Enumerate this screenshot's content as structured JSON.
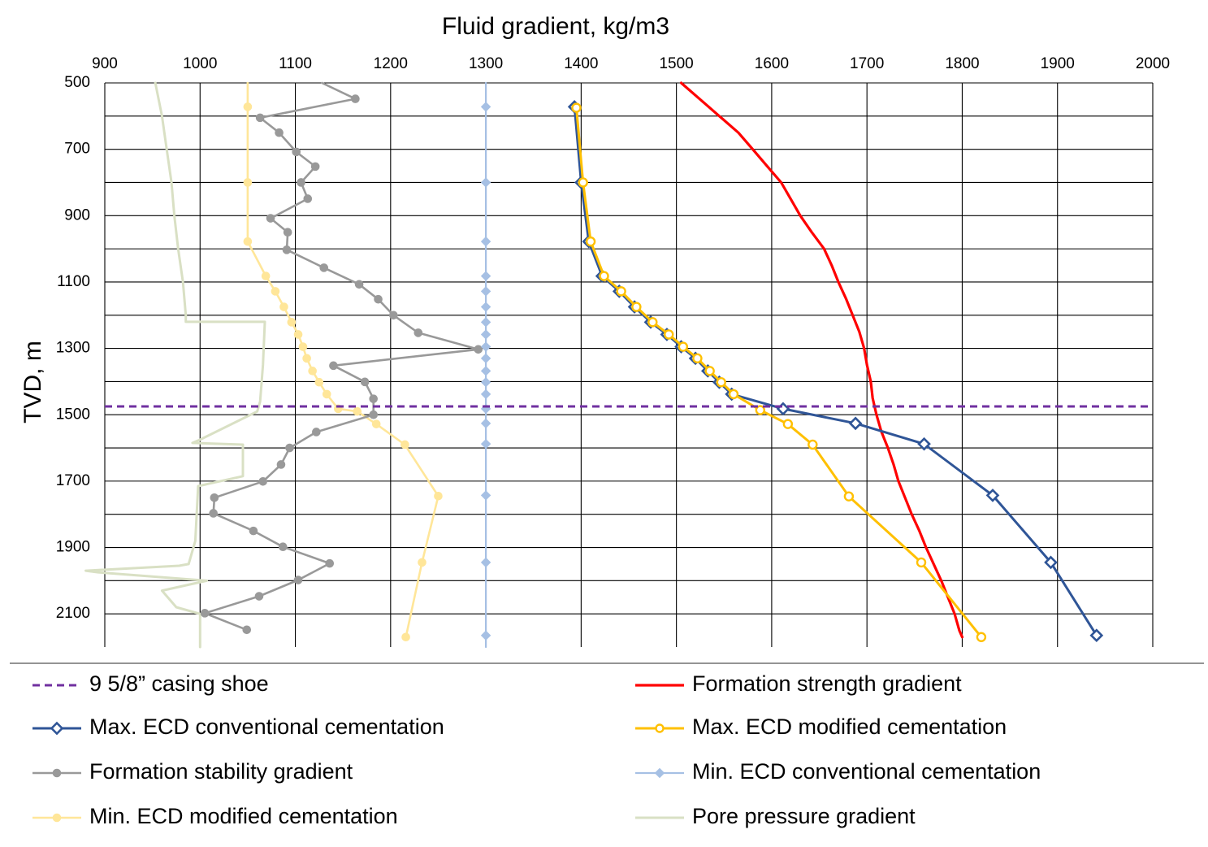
{
  "chart_data": {
    "type": "line",
    "xlabel": "Fluid gradient, kg/m3",
    "ylabel": "TVD, m",
    "x_axis_position": "top",
    "y_axis_inverted": true,
    "xlim": [
      900,
      2000
    ],
    "ylim": [
      500,
      2200
    ],
    "x_ticks": [
      "900",
      "1000",
      "1100",
      "1200",
      "1300",
      "1400",
      "1500",
      "1600",
      "1700",
      "1800",
      "1900",
      "2000"
    ],
    "y_ticks": [
      "500",
      "700",
      "900",
      "1100",
      "1300",
      "1500",
      "1700",
      "1900",
      "2100"
    ],
    "y_gridlines": [
      500,
      600,
      700,
      800,
      900,
      1000,
      1100,
      1200,
      1300,
      1400,
      1500,
      1600,
      1700,
      1800,
      1900,
      2000,
      2100
    ],
    "grid": true,
    "legend_position": "bottom",
    "series": [
      {
        "name": "9 5/8” casing shoe",
        "color": "#7030a0",
        "style": "dashed",
        "marker": "none",
        "points": [
          [
            900,
            1475
          ],
          [
            2000,
            1475
          ]
        ]
      },
      {
        "name": "Formation strength gradient",
        "color": "#ff0000",
        "style": "solid",
        "marker": "none",
        "points": [
          [
            1505,
            500
          ],
          [
            1525,
            550
          ],
          [
            1545,
            600
          ],
          [
            1565,
            650
          ],
          [
            1580,
            700
          ],
          [
            1595,
            750
          ],
          [
            1610,
            800
          ],
          [
            1620,
            850
          ],
          [
            1630,
            900
          ],
          [
            1642,
            950
          ],
          [
            1655,
            1000
          ],
          [
            1663,
            1050
          ],
          [
            1670,
            1100
          ],
          [
            1678,
            1150
          ],
          [
            1685,
            1200
          ],
          [
            1692,
            1250
          ],
          [
            1697,
            1300
          ],
          [
            1700,
            1350
          ],
          [
            1704,
            1400
          ],
          [
            1706,
            1450
          ],
          [
            1710,
            1500
          ],
          [
            1715,
            1550
          ],
          [
            1722,
            1600
          ],
          [
            1728,
            1650
          ],
          [
            1733,
            1700
          ],
          [
            1740,
            1750
          ],
          [
            1747,
            1800
          ],
          [
            1755,
            1850
          ],
          [
            1762,
            1900
          ],
          [
            1770,
            1950
          ],
          [
            1778,
            2000
          ],
          [
            1785,
            2050
          ],
          [
            1792,
            2100
          ],
          [
            1797,
            2150
          ],
          [
            1800,
            2170
          ]
        ]
      },
      {
        "name": "Max. ECD conventional cementation",
        "color": "#2f5597",
        "style": "solid",
        "marker": "open-diamond",
        "points": [
          [
            1393,
            572
          ],
          [
            1400,
            800
          ],
          [
            1408,
            978
          ],
          [
            1422,
            1082
          ],
          [
            1440,
            1128
          ],
          [
            1456,
            1175
          ],
          [
            1473,
            1221
          ],
          [
            1490,
            1258
          ],
          [
            1505,
            1295
          ],
          [
            1520,
            1330
          ],
          [
            1533,
            1368
          ],
          [
            1545,
            1402
          ],
          [
            1558,
            1438
          ],
          [
            1612,
            1482
          ],
          [
            1688,
            1526
          ],
          [
            1760,
            1588
          ],
          [
            1832,
            1743
          ],
          [
            1893,
            1945
          ],
          [
            1941,
            2165
          ]
        ]
      },
      {
        "name": "Max. ECD modified cementation",
        "color": "#ffc000",
        "style": "solid",
        "marker": "open-circle",
        "points": [
          [
            1395,
            575
          ],
          [
            1402,
            800
          ],
          [
            1410,
            978
          ],
          [
            1424,
            1082
          ],
          [
            1442,
            1128
          ],
          [
            1458,
            1175
          ],
          [
            1475,
            1221
          ],
          [
            1492,
            1258
          ],
          [
            1507,
            1295
          ],
          [
            1522,
            1330
          ],
          [
            1535,
            1368
          ],
          [
            1547,
            1402
          ],
          [
            1560,
            1438
          ],
          [
            1588,
            1486
          ],
          [
            1617,
            1528
          ],
          [
            1643,
            1590
          ],
          [
            1681,
            1746
          ],
          [
            1757,
            1945
          ],
          [
            1820,
            2170
          ]
        ]
      },
      {
        "name": "Formation stability gradient",
        "color": "#999999",
        "style": "solid",
        "marker": "circle",
        "points": [
          [
            1128,
            500
          ],
          [
            1163,
            548
          ],
          [
            1063,
            605
          ],
          [
            1083,
            650
          ],
          [
            1101,
            708
          ],
          [
            1121,
            752
          ],
          [
            1106,
            800
          ],
          [
            1113,
            849
          ],
          [
            1074,
            908
          ],
          [
            1092,
            950
          ],
          [
            1091,
            1003
          ],
          [
            1130,
            1057
          ],
          [
            1167,
            1107
          ],
          [
            1187,
            1152
          ],
          [
            1203,
            1200
          ],
          [
            1229,
            1253
          ],
          [
            1292,
            1303
          ],
          [
            1140,
            1352
          ],
          [
            1173,
            1401
          ],
          [
            1182,
            1452
          ],
          [
            1182,
            1500
          ],
          [
            1122,
            1552
          ],
          [
            1094,
            1600
          ],
          [
            1085,
            1650
          ],
          [
            1066,
            1701
          ],
          [
            1015,
            1750
          ],
          [
            1014,
            1797
          ],
          [
            1056,
            1850
          ],
          [
            1087,
            1898
          ],
          [
            1136,
            1948
          ],
          [
            1103,
            1998
          ],
          [
            1062,
            2047
          ],
          [
            1005,
            2098
          ],
          [
            1049,
            2148
          ]
        ]
      },
      {
        "name": "Min. ECD conventional cementation",
        "color": "#a6c0e4",
        "style": "solid",
        "marker": "diamond",
        "points": [
          [
            1300,
            500
          ],
          [
            1300,
            572
          ],
          [
            1300,
            800
          ],
          [
            1300,
            978
          ],
          [
            1300,
            1082
          ],
          [
            1300,
            1128
          ],
          [
            1300,
            1175
          ],
          [
            1300,
            1221
          ],
          [
            1300,
            1258
          ],
          [
            1300,
            1295
          ],
          [
            1300,
            1330
          ],
          [
            1300,
            1368
          ],
          [
            1300,
            1402
          ],
          [
            1300,
            1438
          ],
          [
            1300,
            1482
          ],
          [
            1300,
            1526
          ],
          [
            1300,
            1588
          ],
          [
            1300,
            1743
          ],
          [
            1300,
            1945
          ],
          [
            1300,
            2165
          ],
          [
            1300,
            2200
          ]
        ]
      },
      {
        "name": "Min. ECD modified cementation",
        "color": "#ffe699",
        "style": "solid",
        "marker": "circle",
        "points": [
          [
            1050,
            500
          ],
          [
            1050,
            572
          ],
          [
            1050,
            800
          ],
          [
            1050,
            978
          ],
          [
            1069,
            1082
          ],
          [
            1079,
            1128
          ],
          [
            1088,
            1175
          ],
          [
            1096,
            1221
          ],
          [
            1103,
            1258
          ],
          [
            1108,
            1295
          ],
          [
            1112,
            1330
          ],
          [
            1118,
            1368
          ],
          [
            1125,
            1402
          ],
          [
            1133,
            1438
          ],
          [
            1145,
            1482
          ],
          [
            1165,
            1490
          ],
          [
            1185,
            1528
          ],
          [
            1215,
            1590
          ],
          [
            1250,
            1745
          ],
          [
            1233,
            1945
          ],
          [
            1216,
            2170
          ]
        ]
      },
      {
        "name": "Pore pressure gradient",
        "color": "#d9e0c4",
        "style": "solid",
        "marker": "none",
        "points": [
          [
            953,
            500
          ],
          [
            960,
            600
          ],
          [
            965,
            700
          ],
          [
            970,
            800
          ],
          [
            973,
            900
          ],
          [
            977,
            1000
          ],
          [
            982,
            1100
          ],
          [
            985,
            1200
          ],
          [
            985,
            1220
          ],
          [
            1052,
            1220
          ],
          [
            1068,
            1220
          ],
          [
            1066,
            1350
          ],
          [
            1063,
            1460
          ],
          [
            1060,
            1490
          ],
          [
            1000,
            1575
          ],
          [
            992,
            1585
          ],
          [
            1045,
            1590
          ],
          [
            1045,
            1685
          ],
          [
            998,
            1715
          ],
          [
            995,
            1880
          ],
          [
            988,
            1950
          ],
          [
            978,
            1955
          ],
          [
            880,
            1970
          ],
          [
            893,
            1975
          ],
          [
            1007,
            2000
          ],
          [
            960,
            2030
          ],
          [
            975,
            2080
          ],
          [
            1000,
            2100
          ],
          [
            1000,
            2200
          ]
        ]
      }
    ]
  }
}
